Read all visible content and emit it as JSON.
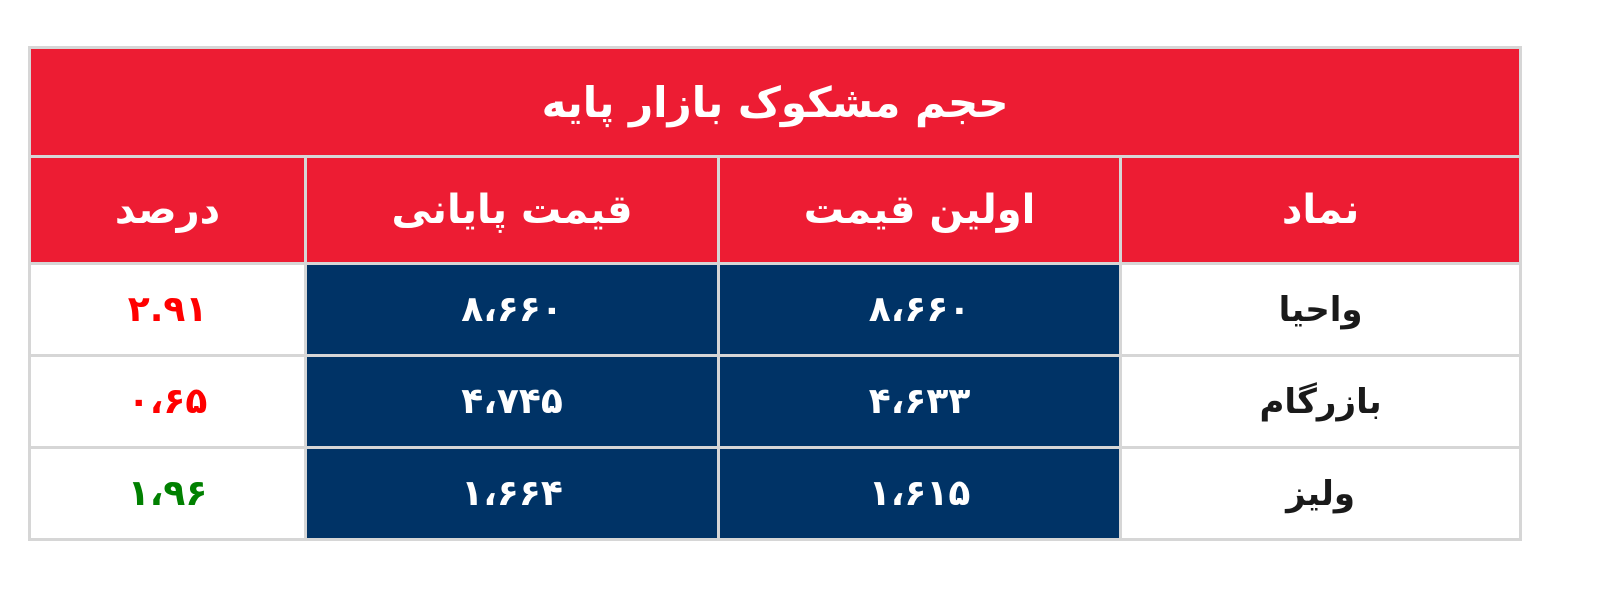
{
  "title": "حجم مشکوک بازار پایه",
  "columns": [
    "نماد",
    "اولین قیمت",
    "قیمت پایانی",
    "درصد"
  ],
  "rows": [
    {
      "symbol": "واحیا",
      "first_price": "۸،۶۶۰",
      "final_price": "۸،۶۶۰",
      "percent": "۲.۹۱",
      "percent_color": "#ff0000"
    },
    {
      "symbol": "بازرگام",
      "first_price": "۴،۶۳۳",
      "final_price": "۴،۷۴۵",
      "percent": "۰،۶۵",
      "percent_color": "#ff0000"
    },
    {
      "symbol": "ولیز",
      "first_price": "۱،۶۱۵",
      "final_price": "۱،۶۶۴",
      "percent": "۱،۹۶",
      "percent_color": "#008000"
    }
  ],
  "colors": {
    "header": "#ED1C33",
    "cells": "#003366"
  }
}
